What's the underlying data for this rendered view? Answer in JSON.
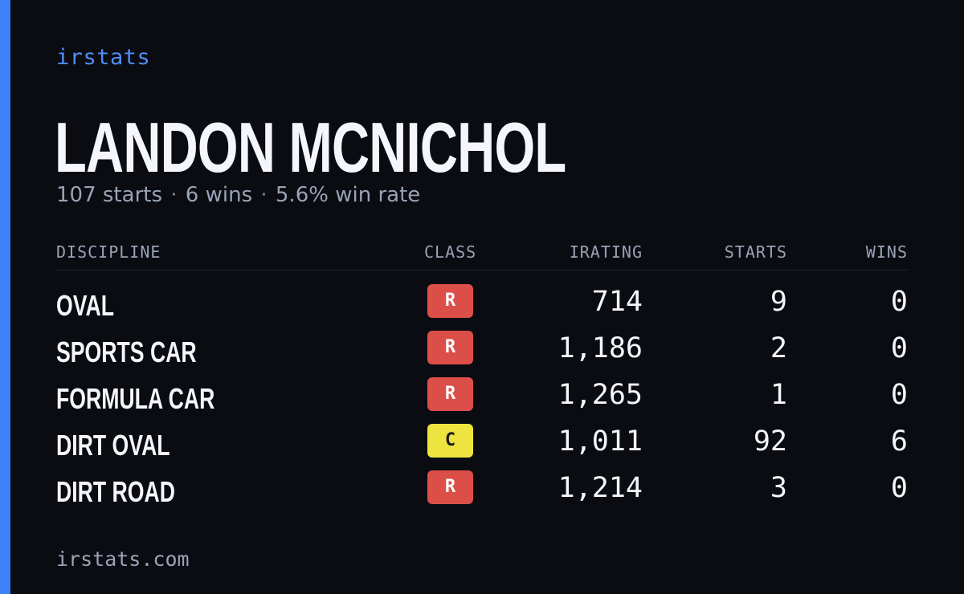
{
  "brand": "irstats",
  "driver": {
    "name": "LANDON MCNICHOL",
    "starts_text": "107 starts",
    "wins_text": "6 wins",
    "winrate_text": "5.6% win rate",
    "separator": "·"
  },
  "table": {
    "headers": {
      "discipline": "DISCIPLINE",
      "class": "CLASS",
      "irating": "IRATING",
      "starts": "STARTS",
      "wins": "WINS"
    },
    "rows": [
      {
        "discipline": "OVAL",
        "class": "R",
        "class_color": "#dc4f49",
        "irating": "714",
        "starts": "9",
        "wins": "0"
      },
      {
        "discipline": "SPORTS CAR",
        "class": "R",
        "class_color": "#dc4f49",
        "irating": "1,186",
        "starts": "2",
        "wins": "0"
      },
      {
        "discipline": "FORMULA CAR",
        "class": "R",
        "class_color": "#dc4f49",
        "irating": "1,265",
        "starts": "1",
        "wins": "0"
      },
      {
        "discipline": "DIRT OVAL",
        "class": "C",
        "class_color": "#ede43f",
        "irating": "1,011",
        "starts": "92",
        "wins": "6"
      },
      {
        "discipline": "DIRT ROAD",
        "class": "R",
        "class_color": "#dc4f49",
        "irating": "1,214",
        "starts": "3",
        "wins": "0"
      }
    ]
  },
  "footer": "irstats.com",
  "colors": {
    "background": "#0a0c12",
    "accent": "#3b82f6",
    "brand": "#4f8ef7",
    "muted": "#9aa3b5"
  }
}
